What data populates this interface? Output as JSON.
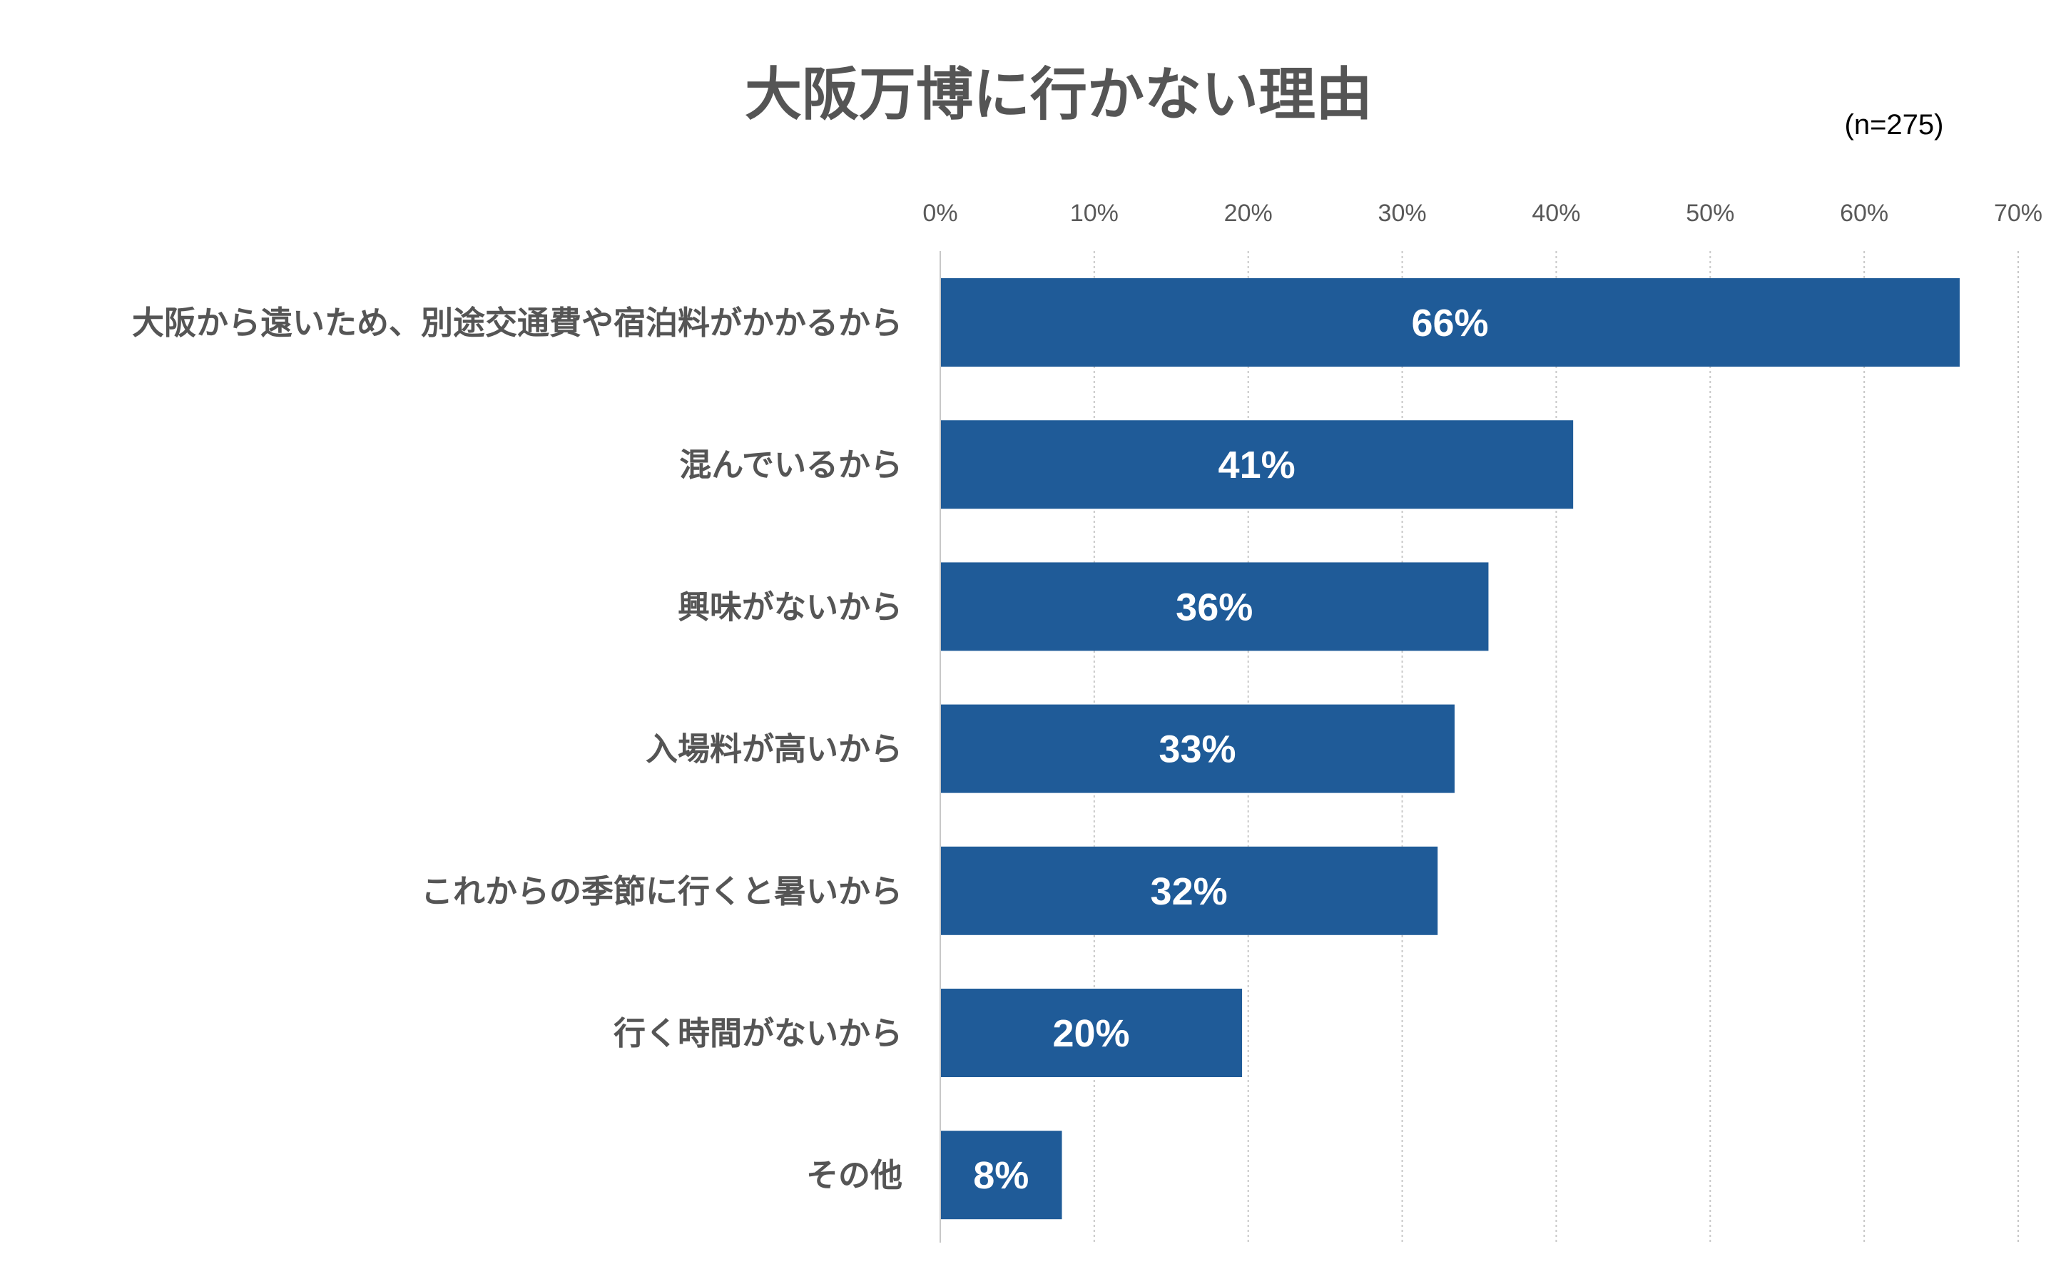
{
  "chart_data": {
    "type": "bar",
    "orientation": "horizontal",
    "title": "大阪万博に行かない理由",
    "note": "(n=275)",
    "categories": [
      "大阪から遠いため、別途交通費や宿泊料がかかるから",
      "混んでいるから",
      "興味がないから",
      "入場料が高いから",
      "これからの季節に行くと暑いから",
      "行く時間がないから",
      "その他"
    ],
    "values": [
      66.2,
      41.1,
      35.6,
      33.4,
      32.3,
      19.6,
      7.9
    ],
    "data_labels": [
      "66%",
      "41%",
      "36%",
      "33%",
      "32%",
      "20%",
      "8%"
    ],
    "x_ticks": [
      "0%",
      "10%",
      "20%",
      "30%",
      "40%",
      "50%",
      "60%",
      "70%"
    ],
    "xlim": [
      0,
      70
    ],
    "xlabel": "",
    "ylabel": "",
    "x_axis_position": "top",
    "grid": true,
    "legend": "none",
    "colors": {
      "bar": "#1f5b98",
      "bar_label": "#ffffff",
      "title": "#555555",
      "category_label": "#555555",
      "tick_label": "#595959",
      "note": "#000000",
      "grid": "#c8c8c8",
      "axis": "#c8c8c8"
    }
  }
}
